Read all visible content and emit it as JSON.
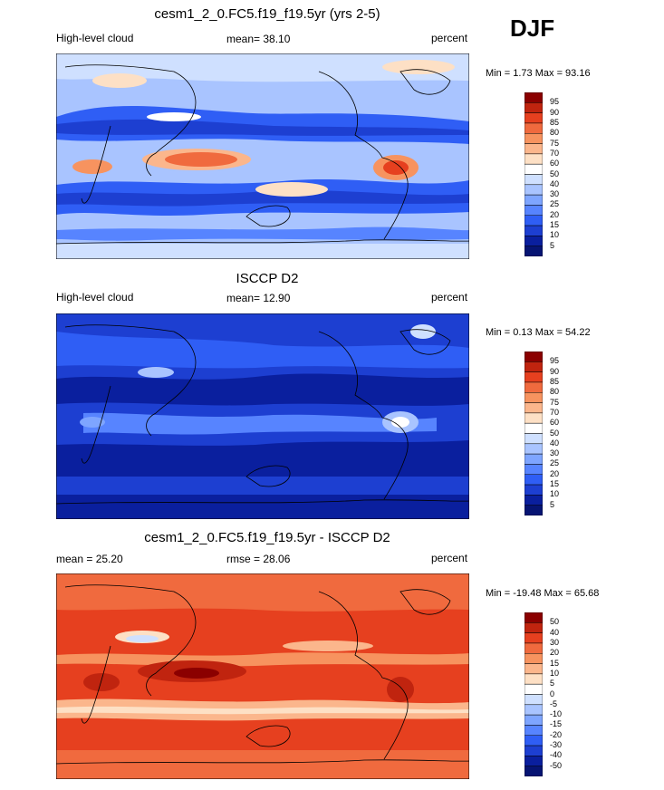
{
  "season": "DJF",
  "panels": [
    {
      "title": "cesm1_2_0.FC5.f19_f19.5yr (yrs 2-5)",
      "left": "High-level cloud",
      "center": "mean=  38.10",
      "right": "percent",
      "minmax": "Min =   1.73 Max =  93.16",
      "scale": "abs",
      "colorbar": {
        "labels": [
          "95",
          "90",
          "85",
          "80",
          "75",
          "70",
          "60",
          "50",
          "40",
          "30",
          "25",
          "20",
          "15",
          "10",
          "5"
        ],
        "colors": [
          "#8b0000",
          "#c0240f",
          "#e6401f",
          "#f06a3e",
          "#f7935f",
          "#fbb68c",
          "#fde0c5",
          "#ffffff",
          "#cfe0ff",
          "#a9c4ff",
          "#7ea5ff",
          "#5784ff",
          "#2f5ef5",
          "#1d3fd1",
          "#0a1f9e",
          "#061473"
        ]
      }
    },
    {
      "title": "ISCCP D2",
      "left": "High-level cloud",
      "center": "mean=  12.90",
      "right": "percent",
      "minmax": "Min =   0.13 Max =  54.22",
      "scale": "abs",
      "colorbar": {
        "labels": [
          "95",
          "90",
          "85",
          "80",
          "75",
          "70",
          "60",
          "50",
          "40",
          "30",
          "25",
          "20",
          "15",
          "10",
          "5"
        ],
        "colors": [
          "#8b0000",
          "#c0240f",
          "#e6401f",
          "#f06a3e",
          "#f7935f",
          "#fbb68c",
          "#fde0c5",
          "#ffffff",
          "#cfe0ff",
          "#a9c4ff",
          "#7ea5ff",
          "#5784ff",
          "#2f5ef5",
          "#1d3fd1",
          "#0a1f9e",
          "#061473"
        ]
      }
    },
    {
      "title": "cesm1_2_0.FC5.f19_f19.5yr - ISCCP D2",
      "left": "mean =  25.20",
      "center": "rmse =  28.06",
      "right": "percent",
      "minmax": "Min = -19.48 Max =  65.68",
      "scale": "diff",
      "colorbar": {
        "labels": [
          "50",
          "40",
          "30",
          "20",
          "15",
          "10",
          "5",
          "0",
          "-5",
          "-10",
          "-15",
          "-20",
          "-30",
          "-40",
          "-50"
        ],
        "colors": [
          "#8b0000",
          "#c0240f",
          "#e6401f",
          "#f06a3e",
          "#f7935f",
          "#fbb68c",
          "#fde0c5",
          "#ffffff",
          "#cfe0ff",
          "#a9c4ff",
          "#7ea5ff",
          "#5784ff",
          "#2f5ef5",
          "#1d3fd1",
          "#0a1f9e",
          "#061473"
        ]
      }
    }
  ]
}
